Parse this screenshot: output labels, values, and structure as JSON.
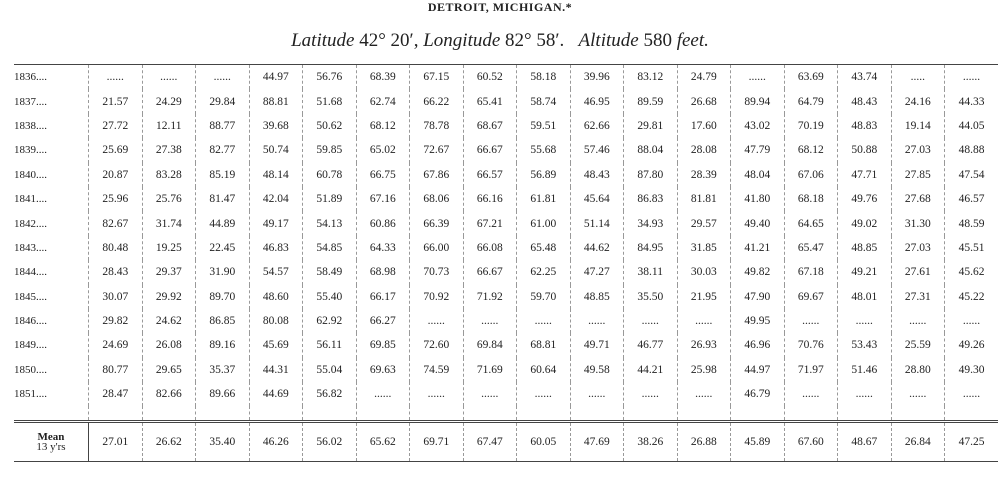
{
  "header": {
    "title": "DETROIT, MICHIGAN.*",
    "subtitle": [
      {
        "text": "Latitude",
        "italic": true
      },
      {
        "text": " 42° 20′, ",
        "italic": false
      },
      {
        "text": "Longitude",
        "italic": true
      },
      {
        "text": " 82° 58′.   ",
        "italic": false
      },
      {
        "text": "Altitude",
        "italic": true
      },
      {
        "text": " 580 ",
        "italic": false
      },
      {
        "text": "feet.",
        "italic": true
      }
    ]
  },
  "table": {
    "rows": [
      {
        "year": "1836....",
        "values": [
          "......",
          "......",
          "......",
          "44.97",
          "56.76",
          "68.39",
          "67.15",
          "60.52",
          "58.18",
          "39.96",
          "83.12",
          "24.79",
          "......",
          "63.69",
          "43.74",
          ".....",
          "......"
        ]
      },
      {
        "year": "1837....",
        "values": [
          "21.57",
          "24.29",
          "29.84",
          "88.81",
          "51.68",
          "62.74",
          "66.22",
          "65.41",
          "58.74",
          "46.95",
          "89.59",
          "26.68",
          "89.94",
          "64.79",
          "48.43",
          "24.16",
          "44.33"
        ]
      },
      {
        "year": "1838....",
        "values": [
          "27.72",
          "12.11",
          "88.77",
          "39.68",
          "50.62",
          "68.12",
          "78.78",
          "68.67",
          "59.51",
          "62.66",
          "29.81",
          "17.60",
          "43.02",
          "70.19",
          "48.83",
          "19.14",
          "44.05"
        ]
      },
      {
        "year": "1839....",
        "values": [
          "25.69",
          "27.38",
          "82.77",
          "50.74",
          "59.85",
          "65.02",
          "72.67",
          "66.67",
          "55.68",
          "57.46",
          "88.04",
          "28.08",
          "47.79",
          "68.12",
          "50.88",
          "27.03",
          "48.88"
        ]
      },
      {
        "year": "1840....",
        "values": [
          "20.87",
          "83.28",
          "85.19",
          "48.14",
          "60.78",
          "66.75",
          "67.86",
          "66.57",
          "56.89",
          "48.43",
          "87.80",
          "28.39",
          "48.04",
          "67.06",
          "47.71",
          "27.85",
          "47.54"
        ]
      },
      {
        "year": "1841....",
        "values": [
          "25.96",
          "25.76",
          "81.47",
          "42.04",
          "51.89",
          "67.16",
          "68.06",
          "66.16",
          "61.81",
          "45.64",
          "86.83",
          "81.81",
          "41.80",
          "68.18",
          "49.76",
          "27.68",
          "46.57"
        ]
      },
      {
        "year": "1842....",
        "values": [
          "82.67",
          "31.74",
          "44.89",
          "49.17",
          "54.13",
          "60.86",
          "66.39",
          "67.21",
          "61.00",
          "51.14",
          "34.93",
          "29.57",
          "49.40",
          "64.65",
          "49.02",
          "31.30",
          "48.59"
        ]
      },
      {
        "year": "1843....",
        "values": [
          "80.48",
          "19.25",
          "22.45",
          "46.83",
          "54.85",
          "64.33",
          "66.00",
          "66.08",
          "65.48",
          "44.62",
          "84.95",
          "31.85",
          "41.21",
          "65.47",
          "48.85",
          "27.03",
          "45.51"
        ]
      },
      {
        "year": "1844....",
        "values": [
          "28.43",
          "29.37",
          "31.90",
          "54.57",
          "58.49",
          "68.98",
          "70.73",
          "66.67",
          "62.25",
          "47.27",
          "38.11",
          "30.03",
          "49.82",
          "67.18",
          "49.21",
          "27.61",
          "45.62"
        ]
      },
      {
        "year": "1845....",
        "values": [
          "30.07",
          "29.92",
          "89.70",
          "48.60",
          "55.40",
          "66.17",
          "70.92",
          "71.92",
          "59.70",
          "48.85",
          "35.50",
          "21.95",
          "47.90",
          "69.67",
          "48.01",
          "27.31",
          "45.22"
        ]
      },
      {
        "year": "1846....",
        "values": [
          "29.82",
          "24.62",
          "86.85",
          "80.08",
          "62.92",
          "66.27",
          "......",
          "......",
          "......",
          "......",
          "......",
          "......",
          "49.95",
          "......",
          "......",
          "......",
          "......"
        ]
      },
      {
        "year": "1849....",
        "values": [
          "24.69",
          "26.08",
          "89.16",
          "45.69",
          "56.11",
          "69.85",
          "72.60",
          "69.84",
          "68.81",
          "49.71",
          "46.77",
          "26.93",
          "46.96",
          "70.76",
          "53.43",
          "25.59",
          "49.26"
        ]
      },
      {
        "year": "1850....",
        "values": [
          "80.77",
          "29.65",
          "35.37",
          "44.31",
          "55.04",
          "69.63",
          "74.59",
          "71.69",
          "60.64",
          "49.58",
          "44.21",
          "25.98",
          "44.97",
          "71.97",
          "51.46",
          "28.80",
          "49.30"
        ]
      },
      {
        "year": "1851....",
        "values": [
          "28.47",
          "82.66",
          "89.66",
          "44.69",
          "56.82",
          "......",
          "......",
          "......",
          "......",
          "......",
          "......",
          "......",
          "46.79",
          "......",
          "......",
          "......",
          "......"
        ]
      }
    ],
    "mean": {
      "label": [
        "Mean",
        "13 y'rs"
      ],
      "values": [
        "27.01",
        "26.62",
        "35.40",
        "46.26",
        "56.02",
        "65.62",
        "69.71",
        "67.47",
        "60.05",
        "47.69",
        "38.26",
        "26.88",
        "45.89",
        "67.60",
        "48.67",
        "26.84",
        "47.25"
      ]
    }
  }
}
